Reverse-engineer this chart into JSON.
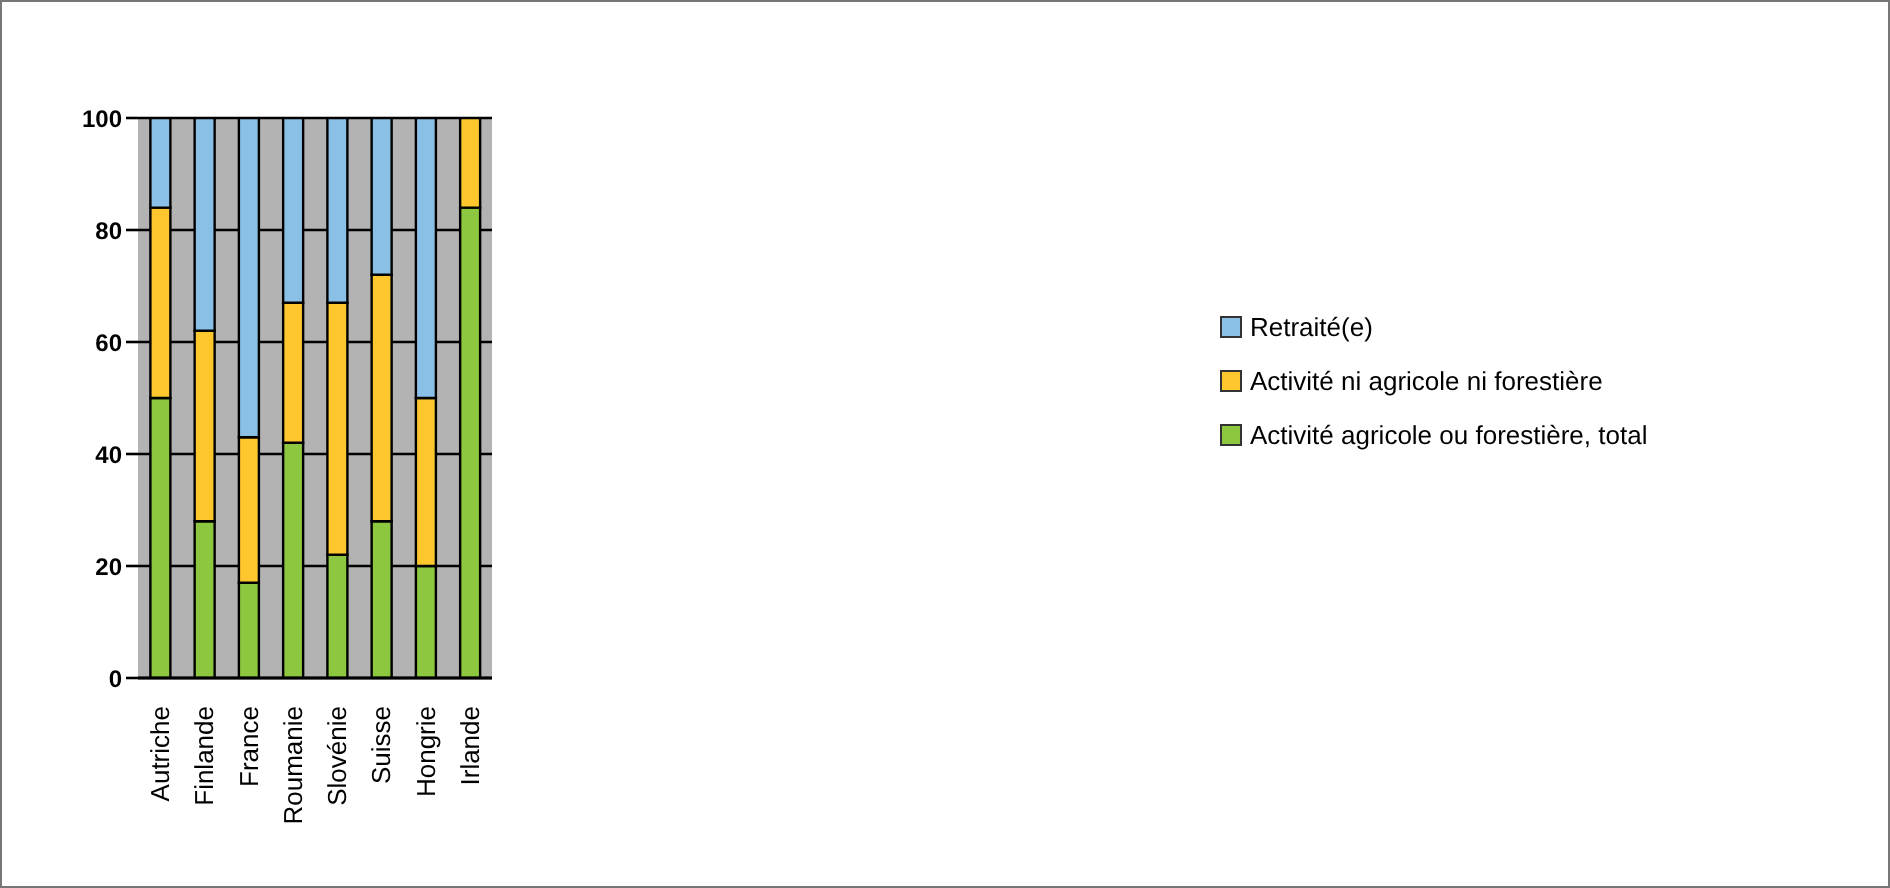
{
  "chart_data": {
    "type": "bar",
    "stacked": true,
    "categories": [
      "Autriche",
      "Finlande",
      "France",
      "Roumanie",
      "Slovénie",
      "Suisse",
      "Hongrie",
      "Irlande"
    ],
    "series": [
      {
        "name": "Activité agricole ou forestière, total",
        "color": "#8dc63f",
        "values": [
          50,
          28,
          17,
          42,
          22,
          28,
          20,
          84
        ]
      },
      {
        "name": "Activité ni agricole ni forestière",
        "color": "#fec72e",
        "values": [
          34,
          34,
          26,
          25,
          45,
          44,
          30,
          16
        ]
      },
      {
        "name": "Retraité(e)",
        "color": "#8bc0e6",
        "values": [
          16,
          38,
          57,
          33,
          33,
          28,
          50,
          0
        ]
      }
    ],
    "ylim": [
      0,
      100
    ],
    "yticks": [
      0,
      20,
      40,
      60,
      80,
      100
    ],
    "grid": "y",
    "legend": "right"
  }
}
